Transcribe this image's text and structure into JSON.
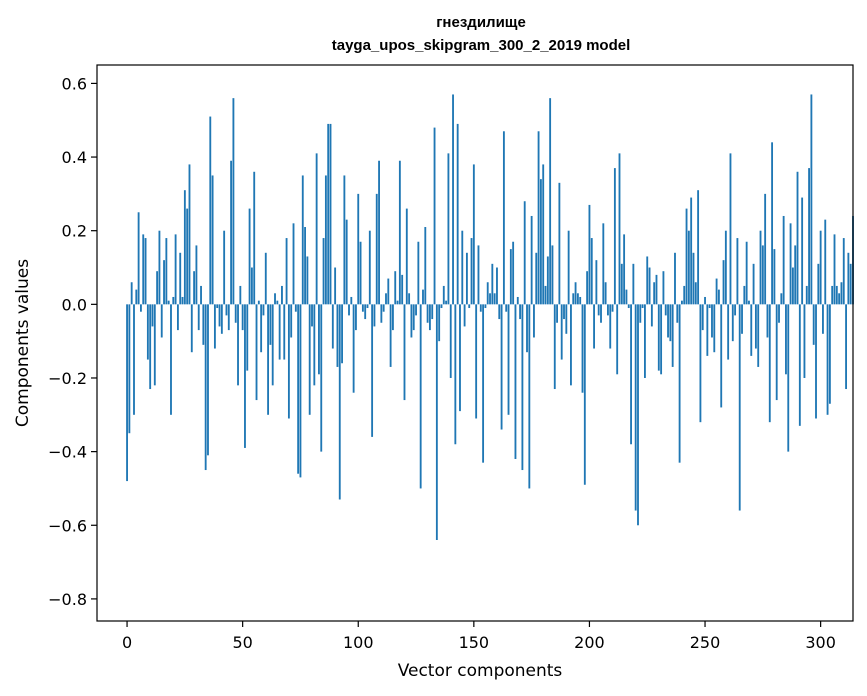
{
  "chart_data": {
    "type": "bar",
    "title": "гнездилище",
    "subtitle": "tayga_upos_skipgram_300_2_2019 model",
    "xlabel": "Vector components",
    "ylabel": "Components values",
    "xlim": [
      -13,
      314
    ],
    "ylim": [
      -0.86,
      0.65
    ],
    "x_ticks": [
      {
        "value": 0,
        "label": "0"
      },
      {
        "value": 50,
        "label": "50"
      },
      {
        "value": 100,
        "label": "100"
      },
      {
        "value": 150,
        "label": "150"
      },
      {
        "value": 200,
        "label": "200"
      },
      {
        "value": 250,
        "label": "250"
      },
      {
        "value": 300,
        "label": "300"
      }
    ],
    "y_ticks": [
      {
        "value": 0.6,
        "label": "0.6"
      },
      {
        "value": 0.4,
        "label": "0.4"
      },
      {
        "value": 0.2,
        "label": "0.2"
      },
      {
        "value": 0.0,
        "label": "0.0"
      },
      {
        "value": -0.2,
        "label": "−0.2"
      },
      {
        "value": -0.4,
        "label": "−0.4"
      },
      {
        "value": -0.6,
        "label": "−0.6"
      },
      {
        "value": -0.8,
        "label": "−0.8"
      }
    ],
    "bar_color": "#1f77b4",
    "series": [
      {
        "name": "гнездилище",
        "values": [
          -0.48,
          -0.35,
          0.06,
          -0.3,
          0.04,
          0.25,
          -0.02,
          0.19,
          0.18,
          -0.15,
          -0.23,
          -0.06,
          -0.22,
          0.09,
          0.2,
          -0.09,
          0.12,
          0.18,
          0.01,
          -0.3,
          0.02,
          0.19,
          -0.07,
          0.14,
          0.02,
          0.31,
          0.26,
          0.38,
          -0.13,
          0.09,
          0.16,
          -0.07,
          0.05,
          -0.11,
          -0.45,
          -0.41,
          0.51,
          0.35,
          -0.12,
          -0.01,
          -0.06,
          -0.08,
          0.2,
          -0.03,
          -0.07,
          0.39,
          0.56,
          -0.05,
          -0.22,
          0.05,
          -0.07,
          -0.39,
          -0.18,
          0.26,
          0.1,
          0.36,
          -0.26,
          0.01,
          -0.13,
          -0.03,
          0.14,
          -0.3,
          -0.11,
          -0.22,
          0.03,
          0.01,
          -0.15,
          0.05,
          -0.15,
          0.18,
          -0.31,
          -0.09,
          0.22,
          -0.02,
          -0.46,
          -0.47,
          0.35,
          0.21,
          0.13,
          -0.3,
          -0.06,
          -0.22,
          0.41,
          -0.19,
          -0.4,
          0.18,
          0.35,
          0.49,
          0.49,
          -0.12,
          0.1,
          -0.17,
          -0.53,
          -0.16,
          0.35,
          0.23,
          -0.03,
          0.02,
          -0.24,
          -0.07,
          0.3,
          0.17,
          -0.02,
          -0.04,
          -0.01,
          0.2,
          -0.36,
          -0.06,
          0.3,
          0.39,
          -0.05,
          -0.02,
          0.03,
          0.07,
          -0.17,
          -0.07,
          0.09,
          0.01,
          0.39,
          0.08,
          -0.26,
          0.26,
          0.03,
          -0.09,
          -0.07,
          -0.03,
          0.17,
          -0.5,
          0.04,
          0.21,
          -0.05,
          -0.07,
          -0.04,
          0.48,
          -0.64,
          -0.1,
          -0.01,
          0.05,
          0.01,
          0.41,
          -0.2,
          0.57,
          -0.38,
          0.49,
          -0.29,
          0.2,
          -0.06,
          0.14,
          -0.01,
          0.18,
          0.38,
          -0.31,
          0.16,
          -0.02,
          -0.43,
          -0.01,
          0.06,
          0.03,
          0.11,
          0.03,
          0.1,
          -0.04,
          -0.34,
          0.47,
          -0.02,
          -0.3,
          0.15,
          0.17,
          -0.42,
          0.02,
          -0.04,
          -0.45,
          0.28,
          -0.13,
          -0.5,
          0.24,
          -0.09,
          0.14,
          0.47,
          0.34,
          0.38,
          0.05,
          0.13,
          0.56,
          0.16,
          -0.23,
          -0.05,
          0.33,
          -0.15,
          -0.04,
          -0.08,
          0.2,
          -0.22,
          0.03,
          0.06,
          0.03,
          0.02,
          -0.24,
          -0.49,
          0.09,
          0.27,
          0.18,
          -0.12,
          0.12,
          -0.03,
          -0.05,
          0.22,
          0.06,
          -0.03,
          -0.12,
          -0.02,
          0.37,
          -0.19,
          0.41,
          0.11,
          0.19,
          0.04,
          -0.01,
          -0.38,
          0.11,
          -0.56,
          -0.6,
          -0.05,
          -0.01,
          -0.2,
          0.13,
          0.1,
          -0.06,
          0.06,
          0.08,
          -0.18,
          -0.19,
          0.09,
          -0.03,
          -0.09,
          -0.1,
          -0.17,
          0.14,
          -0.05,
          -0.43,
          0.01,
          0.05,
          0.26,
          0.2,
          0.29,
          0.14,
          0.06,
          0.31,
          -0.32,
          -0.07,
          0.02,
          -0.14,
          -0.01,
          -0.09,
          -0.13,
          0.07,
          0.04,
          -0.28,
          0.12,
          0.2,
          -0.15,
          0.41,
          -0.1,
          -0.03,
          0.18,
          -0.56,
          -0.08,
          0.05,
          0.17,
          0.01,
          -0.14,
          0.11,
          -0.12,
          -0.17,
          0.2,
          0.16,
          0.3,
          -0.09,
          -0.32,
          0.44,
          0.15,
          -0.26,
          -0.05,
          0.03,
          0.24,
          -0.19,
          -0.4,
          0.22,
          0.1,
          0.16,
          0.36,
          -0.33,
          0.29,
          -0.2,
          0.05,
          0.37,
          0.57,
          -0.11,
          -0.31,
          0.11,
          0.2,
          -0.08,
          0.23,
          -0.3,
          -0.27,
          0.05,
          0.19,
          0.05,
          0.03,
          0.06,
          0.18,
          -0.23,
          0.14,
          0.11,
          0.24
        ]
      }
    ]
  }
}
